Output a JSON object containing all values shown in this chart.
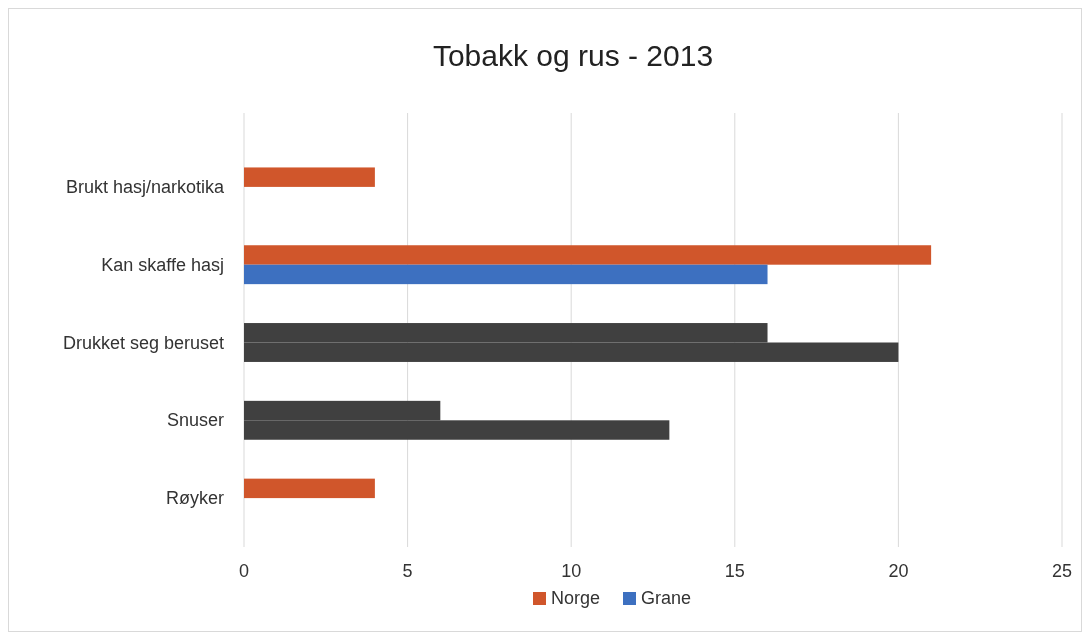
{
  "chart_data": {
    "type": "bar",
    "orientation": "horizontal",
    "title": "Tobakk og rus - 2013",
    "categories": [
      "Brukt hasj/narkotika",
      "Kan skaffe hasj",
      "Drukket seg beruset",
      "Snuser",
      "Røyker"
    ],
    "series": [
      {
        "name": "Norge",
        "color": "#d0562b",
        "colors": [
          "#d0562b",
          "#d0562b",
          "#404040",
          "#404040",
          "#d0562b"
        ],
        "values": [
          4,
          21,
          16,
          6,
          4
        ]
      },
      {
        "name": "Grane",
        "color": "#3d70c0",
        "colors": [
          "#3d70c0",
          "#3d70c0",
          "#404040",
          "#404040",
          "#3d70c0"
        ],
        "values": [
          null,
          16,
          20,
          13,
          null
        ]
      }
    ],
    "xlim": [
      0,
      25
    ],
    "xticks": [
      0,
      5,
      10,
      15,
      20,
      25
    ],
    "grid": "x",
    "legend": "bottom"
  }
}
